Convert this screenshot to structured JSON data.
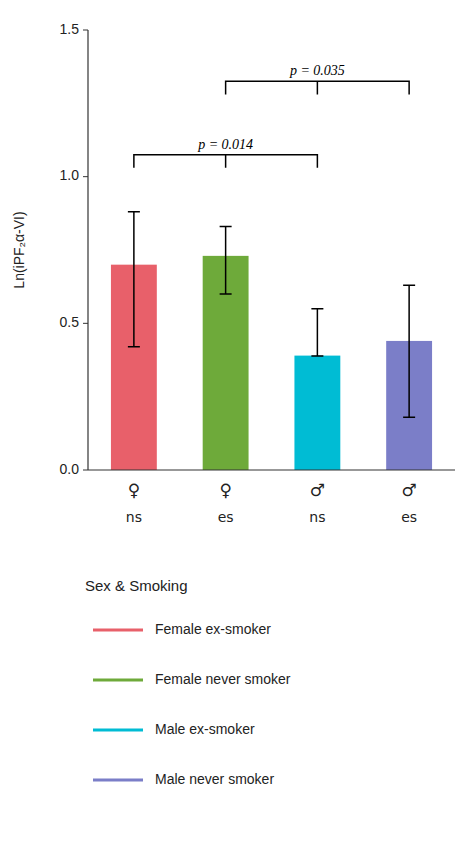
{
  "chart_data": {
    "type": "bar",
    "categories": [
      [
        "♀",
        "ns"
      ],
      [
        "♀",
        "es"
      ],
      [
        "♂",
        "ns"
      ],
      [
        "♂",
        "es"
      ]
    ],
    "values": [
      0.7,
      0.73,
      0.39,
      0.44
    ],
    "errors_upper": [
      0.18,
      0.1,
      0.16,
      0.19
    ],
    "errors_lower": [
      0.28,
      0.13,
      0.001,
      0.26
    ],
    "colors": [
      "#E8606A",
      "#6EAA3A",
      "#00BCD4",
      "#7B7EC8"
    ],
    "ylim": [
      0,
      1.5
    ],
    "yticks": [
      {
        "value": 0,
        "label": "0.0"
      },
      0.5,
      {
        "value": 1.0,
        "label": "1.0"
      },
      1.5
    ],
    "y_label": "Ln(iPF₂α-VI)",
    "grid": false,
    "legend": "bottom",
    "legend_title": "Sex & Smoking",
    "legend_entries": [
      "Female ex-smoker",
      "Female never smoker",
      "Male ex-smoker",
      "Male never smoker"
    ],
    "annotations": [
      {
        "text": "p = 0.014",
        "from": 0,
        "to": 2,
        "y": 1.03
      },
      {
        "text": "p = 0.035",
        "from": 1,
        "to": 3,
        "y": 1.28
      }
    ]
  }
}
